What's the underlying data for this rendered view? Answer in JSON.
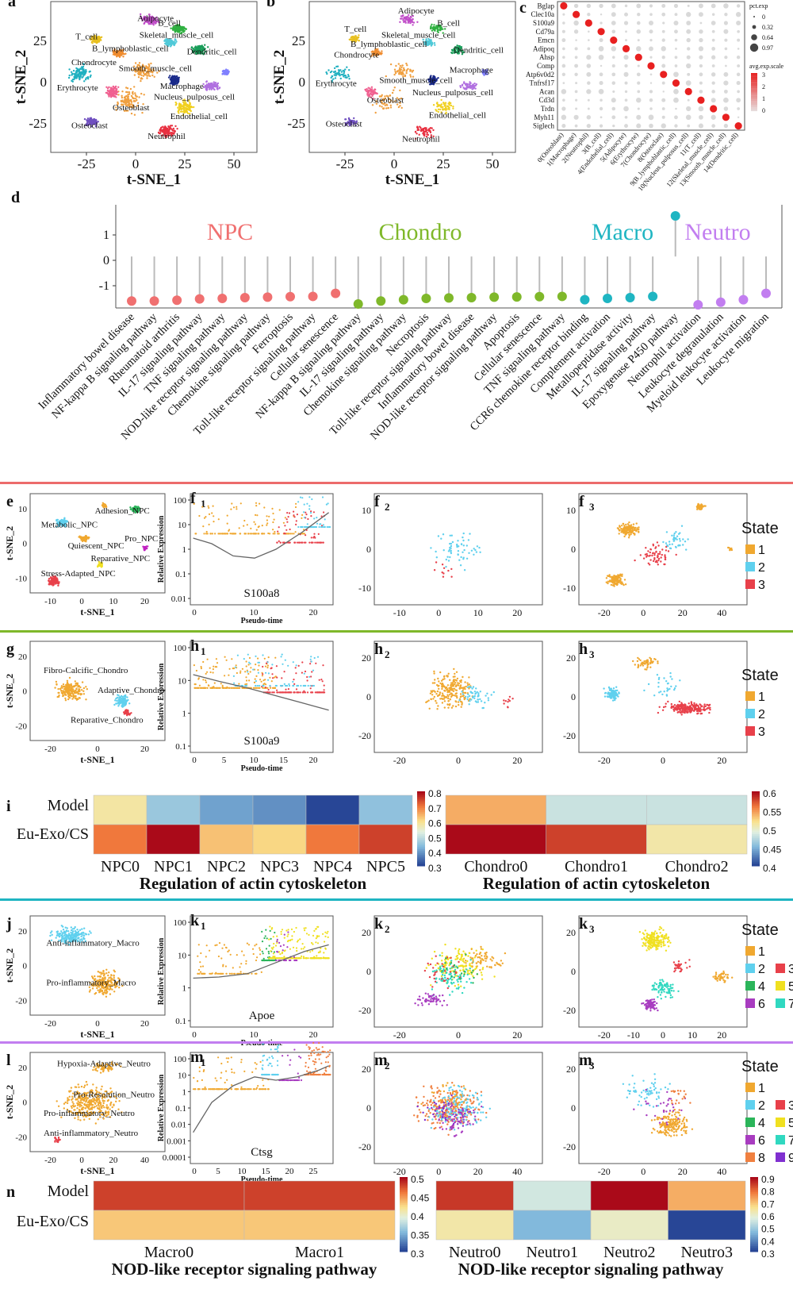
{
  "colors": {
    "npc": "#f07070",
    "chondro": "#7fb82a",
    "macro": "#1fb5c2",
    "neutro": "#c27ef0",
    "state1": "#f0a830",
    "state2": "#5fd0ee",
    "state3": "#e8404a",
    "state4": "#2bb55a",
    "state5": "#f0e020",
    "state6": "#a83cc0",
    "state7": "#30d8c0",
    "state8": "#f08040",
    "state9": "#8030d0"
  },
  "panel_letters": {
    "a": "a",
    "b": "b",
    "c": "c",
    "d": "d",
    "e": "e",
    "f": "f",
    "g": "g",
    "h": "h",
    "i": "i",
    "j": "j",
    "k": "k",
    "l": "l",
    "m": "m",
    "n": "n",
    "sub1": "1",
    "sub2": "2",
    "sub3": "3"
  },
  "tsne": {
    "xlabel": "t-SNE_1",
    "ylabel": "t-SNE_2",
    "top_xticks": [
      "-25",
      "0",
      "25",
      "50"
    ],
    "top_yticks": [
      "25",
      "0",
      "-25"
    ],
    "panel_a_labels": [
      "Adipocyte",
      "T_cell",
      "B_cell",
      "Skeletal_muscle_cell",
      "B_lymphoblastic_cell",
      "Dendritic_cell",
      "Chondrocyte",
      "Smooth_muscle_cell",
      "Erythrocyte",
      "Macrophage",
      "Nucleus_pulposus_cell",
      "Osteoblast",
      "Endothelial_cell",
      "Osteoclast",
      "Neutrophil"
    ],
    "panel_b_labels": [
      "Adipocyte",
      "T_cell",
      "B_cell",
      "Skeletal_muscle_cell",
      "B_lymphoblastic_cell",
      "Dendritic_cell",
      "Chondrocyte",
      "Macrophage",
      "Erythrocyte",
      "Smooth_muscle_cell",
      "Nucleus_pulposus_cell",
      "Osteoblast",
      "Endothelial_cell",
      "Osteoclast",
      "Neutrophil"
    ],
    "e_labels": [
      "Adhesion_NPC",
      "Metabolic_NPC",
      "Pro_NPC",
      "Quiescent_NPC",
      "Reparative_NPC",
      "Stress-Adapted_NPC"
    ],
    "g_labels": [
      "Fibro-Calcific_Chondro",
      "Adaptive_Chondro",
      "Reparative_Chondro"
    ],
    "j_labels": [
      "Anti-inflammatory_Macro",
      "Pro-inflammatory_Macro"
    ],
    "l_labels": [
      "Hypoxia-Adaptive_Neutro",
      "Pro-Resolution_Neutro",
      "Pro-inflammatory_Neutro",
      "Anti-inflammatory_Neutro"
    ]
  },
  "dotplot": {
    "genes": [
      "Bglap",
      "Clec10a",
      "S100a9",
      "Cd79a",
      "Emcn",
      "Adipoq",
      "Ahsp",
      "Comp",
      "Atp6v0d2",
      "Tnfrsf17",
      "Acan",
      "Cd3d",
      "Trdn",
      "Myh11",
      "Siglech"
    ],
    "clusters": [
      "0(Osteoblast)",
      "1(Macrophage)",
      "2(Neutrophil)",
      "3(B_cell)",
      "4(Endothelial_cell)",
      "5(Adipocyte)",
      "6(Erythrocyte)",
      "7(Chondrocyte)",
      "8(Osteoclast)",
      "9(B_lymphoblastic_cell)",
      "10(Nucleus_pulposus_cell)",
      "11(T_cell)",
      "12(Skeletal_muscle_cell)",
      "13(Smooth_muscle_cell)",
      "14(Dendritic_cell)"
    ],
    "legend_pct_title": "pct.exp",
    "legend_pct_values": [
      "0",
      "0.32",
      "0.64",
      "0.97"
    ],
    "legend_avg_title": "avg.exp.scale",
    "legend_avg_values": [
      "3",
      "2",
      "1",
      "0"
    ]
  },
  "lollipop": {
    "groups": [
      "NPC",
      "Chondro",
      "Macro",
      "Neutro"
    ],
    "yticks": [
      "1",
      "0",
      "-1"
    ],
    "items": [
      {
        "group": "NPC",
        "label": "Inflammatory bowel disease",
        "value": -1.6
      },
      {
        "group": "NPC",
        "label": "NF-kappa B signaling pathway",
        "value": -1.6
      },
      {
        "group": "NPC",
        "label": "Rheumatoid arthritis",
        "value": -1.57
      },
      {
        "group": "NPC",
        "label": "IL-17 signaling pathway",
        "value": -1.52
      },
      {
        "group": "NPC",
        "label": "TNF signaling pathway",
        "value": -1.5
      },
      {
        "group": "NPC",
        "label": "NOD-like receptor signaling pathway",
        "value": -1.47
      },
      {
        "group": "NPC",
        "label": "Chemokine signaling pathway",
        "value": -1.45
      },
      {
        "group": "NPC",
        "label": "Ferroptosis",
        "value": -1.43
      },
      {
        "group": "NPC",
        "label": "Toll-like receptor signaling pathway",
        "value": -1.42
      },
      {
        "group": "NPC",
        "label": "Cellular senescence",
        "value": -1.3
      },
      {
        "group": "Chondro",
        "label": "NF-kappa B signaling pathway",
        "value": -1.72
      },
      {
        "group": "Chondro",
        "label": "IL-17 signaling pathway",
        "value": -1.6
      },
      {
        "group": "Chondro",
        "label": "Chemokine signaling pathway",
        "value": -1.55
      },
      {
        "group": "Chondro",
        "label": "Necroptosis",
        "value": -1.5
      },
      {
        "group": "Chondro",
        "label": "Toll-like receptor signaling pathway",
        "value": -1.48
      },
      {
        "group": "Chondro",
        "label": "Inflammatory bowel disease",
        "value": -1.47
      },
      {
        "group": "Chondro",
        "label": "NOD-like receptor signaling pathway",
        "value": -1.45
      },
      {
        "group": "Chondro",
        "label": "Apoptosis",
        "value": -1.44
      },
      {
        "group": "Chondro",
        "label": "Cellular senescence",
        "value": -1.43
      },
      {
        "group": "Chondro",
        "label": "TNF signaling pathway",
        "value": -1.42
      },
      {
        "group": "Macro",
        "label": "CCR6 chemokine receptor binding",
        "value": -1.55
      },
      {
        "group": "Macro",
        "label": "Complement activation",
        "value": -1.5
      },
      {
        "group": "Macro",
        "label": "Metallopeptidase activity",
        "value": -1.47
      },
      {
        "group": "Macro",
        "label": "IL-17 signaling pathway",
        "value": -1.42
      },
      {
        "group": "Macro",
        "label": "Epoxygenase P450 pathway",
        "value": 1.75
      },
      {
        "group": "Neutro",
        "label": "Neutrophil activation",
        "value": -1.75
      },
      {
        "group": "Neutro",
        "label": "Leukocyte degranulation",
        "value": -1.65
      },
      {
        "group": "Neutro",
        "label": "Myeloid leukocyte activation",
        "value": -1.55
      },
      {
        "group": "Neutro",
        "label": "Leukocyte migration",
        "value": -1.3
      }
    ]
  },
  "pseudotime": {
    "xlabel": "Pseudo-time",
    "ylabel": "Relative Expression",
    "f1_gene": "S100a8",
    "h1_gene": "S100a9",
    "k1_gene": "Apoe",
    "m1_gene": "Ctsg",
    "f1_yticks": [
      "100",
      "10",
      "1",
      "0.1",
      "0.01"
    ],
    "f1_xticks": [
      "0",
      "10",
      "20"
    ],
    "h1_yticks": [
      "100",
      "10",
      "1",
      "0.1"
    ],
    "h1_xticks": [
      "0",
      "5",
      "10",
      "15",
      "20"
    ],
    "k1_yticks": [
      "100",
      "10",
      "1",
      "0.1"
    ],
    "k1_xticks": [
      "0",
      "10",
      "20"
    ],
    "m1_yticks": [
      "100",
      "10",
      "1",
      "0.1",
      "0.01",
      "0.001",
      "0.0001"
    ],
    "m1_xticks": [
      "0",
      "5",
      "10",
      "15",
      "20",
      "25"
    ]
  },
  "state_legend": {
    "title": "State",
    "items_3": [
      "1",
      "2",
      "3"
    ],
    "items_7": [
      "1",
      "2",
      "3",
      "4",
      "5",
      "6",
      "7"
    ],
    "items_9": [
      "1",
      "2",
      "3",
      "4",
      "5",
      "6",
      "7",
      "8",
      "9"
    ]
  },
  "heatmaps": {
    "row_labels": [
      "Model",
      "Eu-Exo/CS"
    ],
    "i_left": {
      "cols": [
        "NPC0",
        "NPC1",
        "NPC2",
        "NPC3",
        "NPC4",
        "NPC5"
      ],
      "values": [
        [
          0.58,
          0.45,
          0.4,
          0.38,
          0.3,
          0.44
        ],
        [
          0.7,
          0.8,
          0.63,
          0.61,
          0.7,
          0.75
        ]
      ],
      "scale": [
        "0.8",
        "0.7",
        "0.6",
        "0.5",
        "0.4",
        "0.3"
      ],
      "title": "Regulation of actin cytoskeleton"
    },
    "i_right": {
      "cols": [
        "Chondro0",
        "Chondro1",
        "Chondro2"
      ],
      "values": [
        [
          0.54,
          0.48,
          0.48
        ],
        [
          0.6,
          0.58,
          0.51
        ]
      ],
      "scale": [
        "0.6",
        "0.55",
        "0.5",
        "0.45",
        "0.4"
      ],
      "title": "Regulation of actin cytoskeleton"
    },
    "n_left": {
      "cols": [
        "Macro0",
        "Macro1"
      ],
      "values": [
        [
          0.48,
          0.48
        ],
        [
          0.43,
          0.43
        ]
      ],
      "scale": [
        "0.5",
        "0.45",
        "0.4",
        "0.35",
        "0.3"
      ],
      "title": "NOD-like receptor signaling pathway"
    },
    "n_right": {
      "cols": [
        "Neutro0",
        "Neutro1",
        "Neutro2",
        "Neutro3"
      ],
      "values": [
        [
          0.85,
          0.55,
          0.9,
          0.72
        ],
        [
          0.63,
          0.45,
          0.6,
          0.3
        ]
      ],
      "scale": [
        "0.9",
        "0.8",
        "0.7",
        "0.6",
        "0.5",
        "0.4",
        "0.3"
      ],
      "title": "NOD-like receptor signaling pathway"
    }
  }
}
